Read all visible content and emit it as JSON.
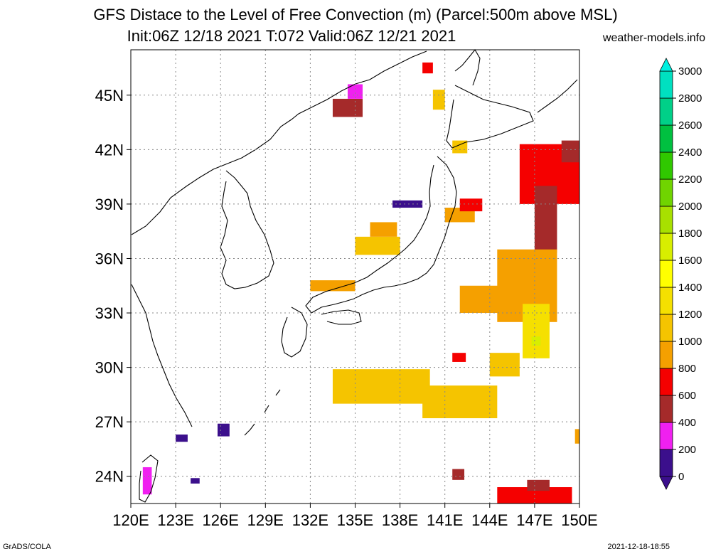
{
  "title_line1": "GFS Distace to the Level of Free Convection (m) (Parcel:500m above MSL)",
  "title_line2": "Init:06Z 12/18 2021 T:072 Valid:06Z 12/21 2021",
  "site": "weather-models.info",
  "credit": "GrADS/COLA",
  "timestamp": "2021-12-18-18:55",
  "map": {
    "lon_range": [
      120,
      150
    ],
    "lat_range": [
      22.5,
      47.5
    ],
    "lat_ticks": [
      {
        "value": 45,
        "label": "45N"
      },
      {
        "value": 42,
        "label": "42N"
      },
      {
        "value": 39,
        "label": "39N"
      },
      {
        "value": 36,
        "label": "36N"
      },
      {
        "value": 33,
        "label": "33N"
      },
      {
        "value": 30,
        "label": "30N"
      },
      {
        "value": 27,
        "label": "27N"
      },
      {
        "value": 24,
        "label": "24N"
      }
    ],
    "lon_ticks": [
      {
        "value": 120,
        "label": "120E"
      },
      {
        "value": 123,
        "label": "123E"
      },
      {
        "value": 126,
        "label": "126E"
      },
      {
        "value": 129,
        "label": "129E"
      },
      {
        "value": 132,
        "label": "132E"
      },
      {
        "value": 135,
        "label": "135E"
      },
      {
        "value": 138,
        "label": "138E"
      },
      {
        "value": 141,
        "label": "141E"
      },
      {
        "value": 144,
        "label": "144E"
      },
      {
        "value": 147,
        "label": "147E"
      },
      {
        "value": 150,
        "label": "150E"
      }
    ],
    "grid": true,
    "regions": [
      {
        "lon": [
          133.5,
          135.5
        ],
        "lat": [
          43.8,
          44.8
        ],
        "level": 400
      },
      {
        "lon": [
          134.5,
          135.5
        ],
        "lat": [
          44.8,
          45.6
        ],
        "level": 200
      },
      {
        "lon": [
          139.5,
          140.2
        ],
        "lat": [
          46.2,
          46.8
        ],
        "level": 600
      },
      {
        "lon": [
          140.2,
          141.0
        ],
        "lat": [
          44.2,
          45.3
        ],
        "level": 1000
      },
      {
        "lon": [
          141.5,
          142.5
        ],
        "lat": [
          41.8,
          42.5
        ],
        "level": 1000
      },
      {
        "lon": [
          137.5,
          139.5
        ],
        "lat": [
          38.8,
          39.2
        ],
        "level": 100
      },
      {
        "lon": [
          135.0,
          138.0
        ],
        "lat": [
          36.2,
          37.2
        ],
        "level": 1000
      },
      {
        "lon": [
          136.0,
          137.8
        ],
        "lat": [
          37.2,
          38.0
        ],
        "level": 900
      },
      {
        "lon": [
          141.0,
          143.0
        ],
        "lat": [
          38.0,
          38.8
        ],
        "level": 900
      },
      {
        "lon": [
          142.0,
          143.5
        ],
        "lat": [
          38.6,
          39.3
        ],
        "level": 600
      },
      {
        "lon": [
          146.0,
          150.0
        ],
        "lat": [
          39.0,
          42.3
        ],
        "level": 600
      },
      {
        "lon": [
          147.0,
          148.5
        ],
        "lat": [
          36.3,
          40.0
        ],
        "level": 400
      },
      {
        "lon": [
          148.8,
          150.0
        ],
        "lat": [
          41.3,
          42.5
        ],
        "level": 400
      },
      {
        "lon": [
          144.5,
          148.5
        ],
        "lat": [
          32.5,
          36.5
        ],
        "level": 900
      },
      {
        "lon": [
          146.2,
          148.0
        ],
        "lat": [
          30.5,
          33.5
        ],
        "level": 1200
      },
      {
        "lon": [
          146.8,
          147.4
        ],
        "lat": [
          31.2,
          31.7
        ],
        "level": 1600
      },
      {
        "lon": [
          142.0,
          145.0
        ],
        "lat": [
          33.0,
          34.5
        ],
        "level": 800
      },
      {
        "lon": [
          141.5,
          142.4
        ],
        "lat": [
          30.3,
          30.8
        ],
        "level": 600
      },
      {
        "lon": [
          132.0,
          135.0
        ],
        "lat": [
          34.2,
          34.8
        ],
        "level": 900
      },
      {
        "lon": [
          133.5,
          140.0
        ],
        "lat": [
          28.0,
          29.9
        ],
        "level": 1000
      },
      {
        "lon": [
          139.5,
          144.5
        ],
        "lat": [
          27.2,
          29.0
        ],
        "level": 1000
      },
      {
        "lon": [
          144.0,
          146.0
        ],
        "lat": [
          29.5,
          30.8
        ],
        "level": 1000
      },
      {
        "lon": [
          144.5,
          149.5
        ],
        "lat": [
          22.5,
          23.4
        ],
        "level": 600
      },
      {
        "lon": [
          146.5,
          148.0
        ],
        "lat": [
          23.2,
          23.8
        ],
        "level": 500
      },
      {
        "lon": [
          141.5,
          142.3
        ],
        "lat": [
          23.8,
          24.4
        ],
        "level": 400
      },
      {
        "lon": [
          125.8,
          126.6
        ],
        "lat": [
          26.2,
          26.9
        ],
        "level": 100
      },
      {
        "lon": [
          123.0,
          123.8
        ],
        "lat": [
          25.9,
          26.3
        ],
        "level": 100
      },
      {
        "lon": [
          124.0,
          124.6
        ],
        "lat": [
          23.6,
          23.9
        ],
        "level": 100
      },
      {
        "lon": [
          120.8,
          121.4
        ],
        "lat": [
          23.0,
          24.5
        ],
        "level": 200
      },
      {
        "lon": [
          149.7,
          150.0
        ],
        "lat": [
          25.8,
          26.6
        ],
        "level": 900
      }
    ]
  },
  "colorbar": {
    "levels": [
      0,
      200,
      400,
      600,
      800,
      1000,
      1200,
      1400,
      1600,
      1800,
      2000,
      2200,
      2400,
      2600,
      2800,
      3000
    ],
    "labels": [
      "0",
      "200",
      "400",
      "600",
      "800",
      "1000",
      "1200",
      "1400",
      "1600",
      "1800",
      "2000",
      "2200",
      "2400",
      "2600",
      "2800",
      "3000"
    ],
    "colors": [
      "#3b0f8c",
      "#f020f0",
      "#a52a2a",
      "#f50000",
      "#f5a000",
      "#f5c400",
      "#f5e000",
      "#ffff00",
      "#d8ee00",
      "#a8e000",
      "#70d400",
      "#30c800",
      "#00c040",
      "#00d088",
      "#00e0c0",
      "#00f0e0"
    ]
  }
}
